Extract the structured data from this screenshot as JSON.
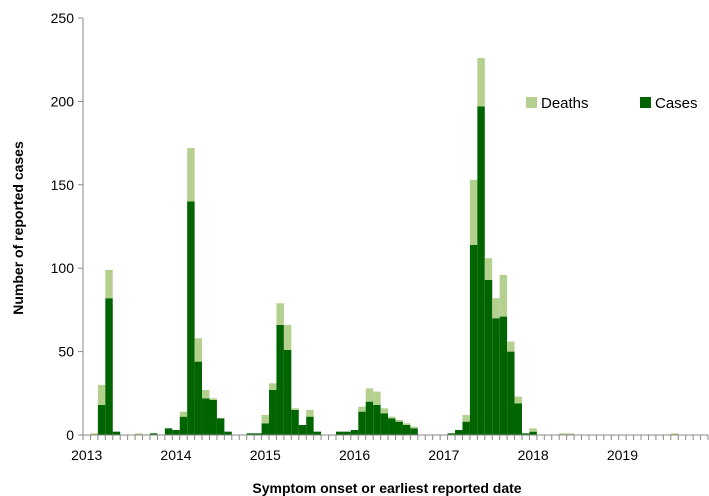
{
  "chart_data": {
    "type": "bar",
    "stacked": true,
    "title": "",
    "xlabel": "Symptom onset or earliest reported date",
    "ylabel": "Number of reported cases",
    "ylim": [
      0,
      250
    ],
    "yticks": [
      "0",
      "50",
      "100",
      "150",
      "200",
      "250"
    ],
    "xtick_labels": [
      "2013",
      "2014",
      "2015",
      "2016",
      "2017",
      "2018",
      "2019"
    ],
    "x_unit": "month",
    "start": "2013-01",
    "end": "2019-12",
    "grid": false,
    "legend_position": "top-right",
    "colors": {
      "Deaths": "#b3d08f",
      "Cases": "#006400"
    },
    "series": [
      {
        "name": "Cases",
        "values": [
          0,
          0,
          18,
          82,
          2,
          0,
          0,
          0,
          0,
          1,
          0,
          4,
          3,
          11,
          140,
          44,
          22,
          21,
          10,
          2,
          0,
          0,
          1,
          1,
          7,
          27,
          66,
          51,
          15,
          6,
          11,
          2,
          0,
          0,
          2,
          2,
          3,
          14,
          20,
          18,
          13,
          10,
          8,
          6,
          4,
          0,
          0,
          0,
          0,
          1,
          3,
          8,
          114,
          197,
          93,
          70,
          71,
          50,
          19,
          1,
          2,
          0,
          0,
          0,
          0,
          0,
          0,
          0,
          0,
          0,
          0,
          0,
          0,
          0,
          0,
          0,
          0,
          0,
          0,
          0,
          0,
          0,
          0,
          0
        ]
      },
      {
        "name": "Deaths",
        "values": [
          0,
          1,
          12,
          17,
          0,
          0,
          0,
          1,
          0,
          0,
          0,
          0,
          0,
          3,
          32,
          14,
          5,
          1,
          0,
          0,
          0,
          0,
          0,
          0,
          5,
          4,
          13,
          15,
          1,
          0,
          4,
          0,
          0,
          0,
          0,
          0,
          0,
          3,
          8,
          8,
          3,
          1,
          1,
          1,
          1,
          0,
          0,
          0,
          0,
          0,
          0,
          4,
          39,
          29,
          13,
          12,
          25,
          6,
          4,
          0,
          2,
          0,
          0,
          0,
          1,
          1,
          0,
          0,
          0,
          0,
          0,
          0,
          0,
          0,
          0,
          0,
          0,
          0,
          0,
          1,
          0,
          0,
          0,
          0
        ]
      }
    ]
  }
}
